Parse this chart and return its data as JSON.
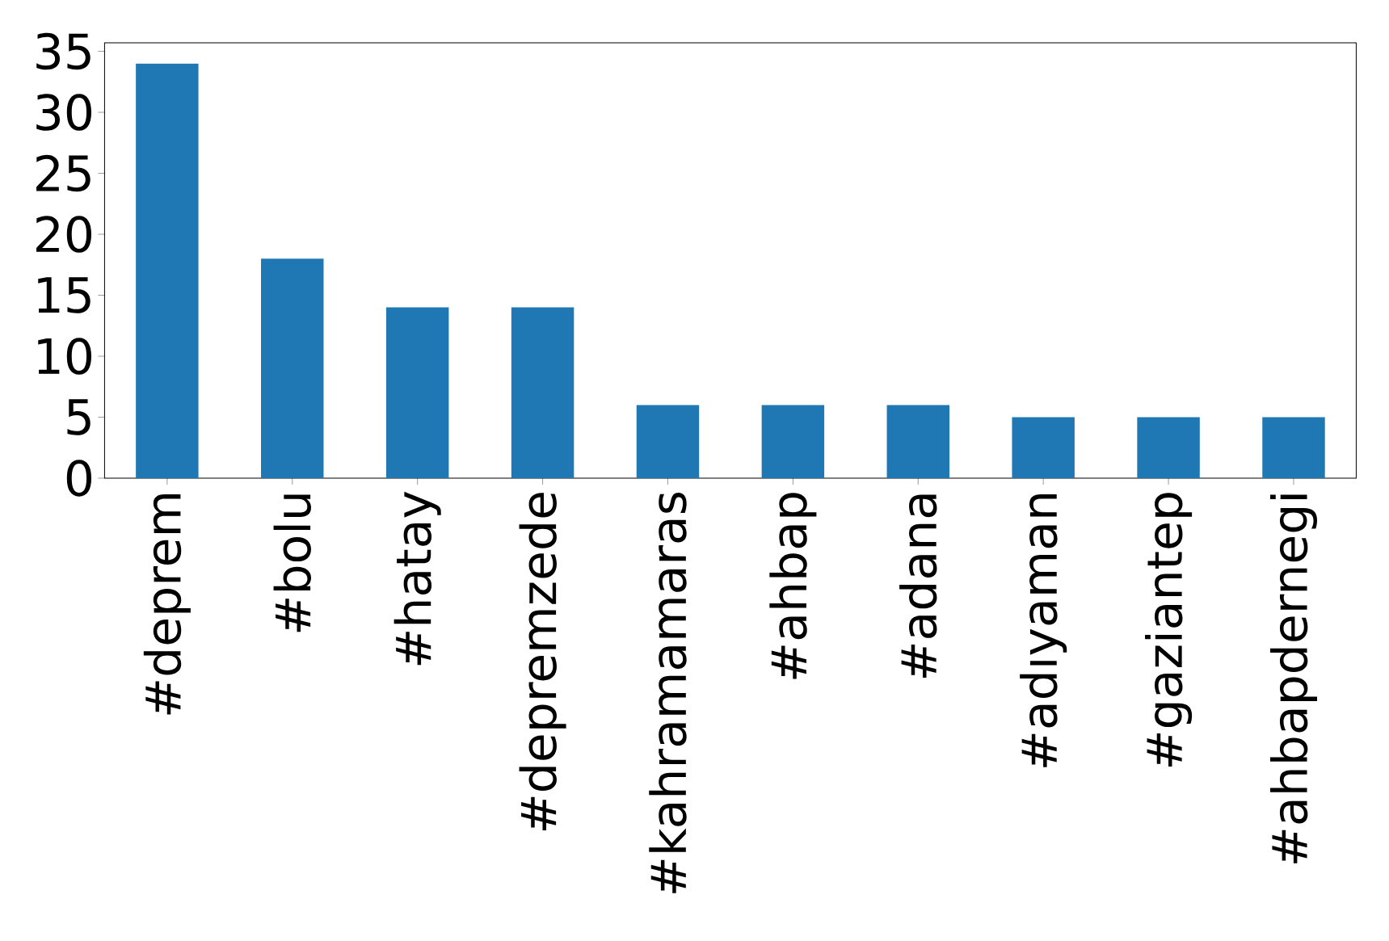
{
  "chart_data": {
    "type": "bar",
    "categories": [
      "#deprem",
      "#bolu",
      "#hatay",
      "#depremzede",
      "#kahramamaras",
      "#ahbap",
      "#adana",
      "#adıyaman",
      "#gaziantep",
      "#ahbapdernegi"
    ],
    "values": [
      34,
      18,
      14,
      14,
      6,
      6,
      6,
      5,
      5,
      5
    ],
    "color": "#1f77b4",
    "ylim": [
      0,
      35.7
    ],
    "yticks": [
      0,
      5,
      10,
      15,
      20,
      25,
      30,
      35
    ],
    "grid": false
  }
}
